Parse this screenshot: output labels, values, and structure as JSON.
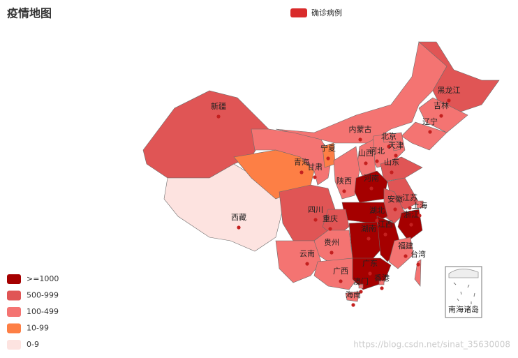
{
  "title": "疫情地图",
  "legend": {
    "name": "确诊病例",
    "color": "#d92b2b"
  },
  "visual_map": [
    {
      "label": ">=1000",
      "color": "#a50000"
    },
    {
      "label": "500-999",
      "color": "#e05555"
    },
    {
      "label": "100-499",
      "color": "#f47472"
    },
    {
      "label": "10-99",
      "color": "#fd7f45"
    },
    {
      "label": "0-9",
      "color": "#fde3e0"
    }
  ],
  "provinces": [
    {
      "name": "新疆",
      "color": "#e05555"
    },
    {
      "name": "西藏",
      "color": "#fde3e0"
    },
    {
      "name": "内蒙古",
      "color": "#f47472"
    },
    {
      "name": "甘肃",
      "color": "#f47472"
    },
    {
      "name": "青海",
      "color": "#fd7f45"
    },
    {
      "name": "宁夏",
      "color": "#fd7f45"
    },
    {
      "name": "黑龙江",
      "color": "#e05555"
    },
    {
      "name": "吉林",
      "color": "#f47472"
    },
    {
      "name": "辽宁",
      "color": "#f47472"
    },
    {
      "name": "河北",
      "color": "#f47472"
    },
    {
      "name": "北京",
      "color": "#f47472"
    },
    {
      "name": "天津",
      "color": "#f47472"
    },
    {
      "name": "山西",
      "color": "#f47472"
    },
    {
      "name": "山东",
      "color": "#e05555"
    },
    {
      "name": "陕西",
      "color": "#f47472"
    },
    {
      "name": "河南",
      "color": "#a50000"
    },
    {
      "name": "江苏",
      "color": "#e05555"
    },
    {
      "name": "安徽",
      "color": "#e05555"
    },
    {
      "name": "上海",
      "color": "#f47472"
    },
    {
      "name": "浙江",
      "color": "#a50000"
    },
    {
      "name": "湖北",
      "color": "#a50000"
    },
    {
      "name": "四川",
      "color": "#e05555"
    },
    {
      "name": "重庆",
      "color": "#e05555"
    },
    {
      "name": "湖南",
      "color": "#a50000"
    },
    {
      "name": "江西",
      "color": "#a50000"
    },
    {
      "name": "贵州",
      "color": "#f47472"
    },
    {
      "name": "云南",
      "color": "#f47472"
    },
    {
      "name": "广西",
      "color": "#f47472"
    },
    {
      "name": "广东",
      "color": "#a50000"
    },
    {
      "name": "福建",
      "color": "#f47472"
    },
    {
      "name": "台湾",
      "color": "#f47472"
    },
    {
      "name": "香港",
      "color": "#f47472"
    },
    {
      "name": "澳门",
      "color": "#f47472"
    },
    {
      "name": "海南",
      "color": "#f47472"
    }
  ],
  "inset_label": "南海诸岛",
  "watermark": "https://blog.csdn.net/sinat_35630008"
}
